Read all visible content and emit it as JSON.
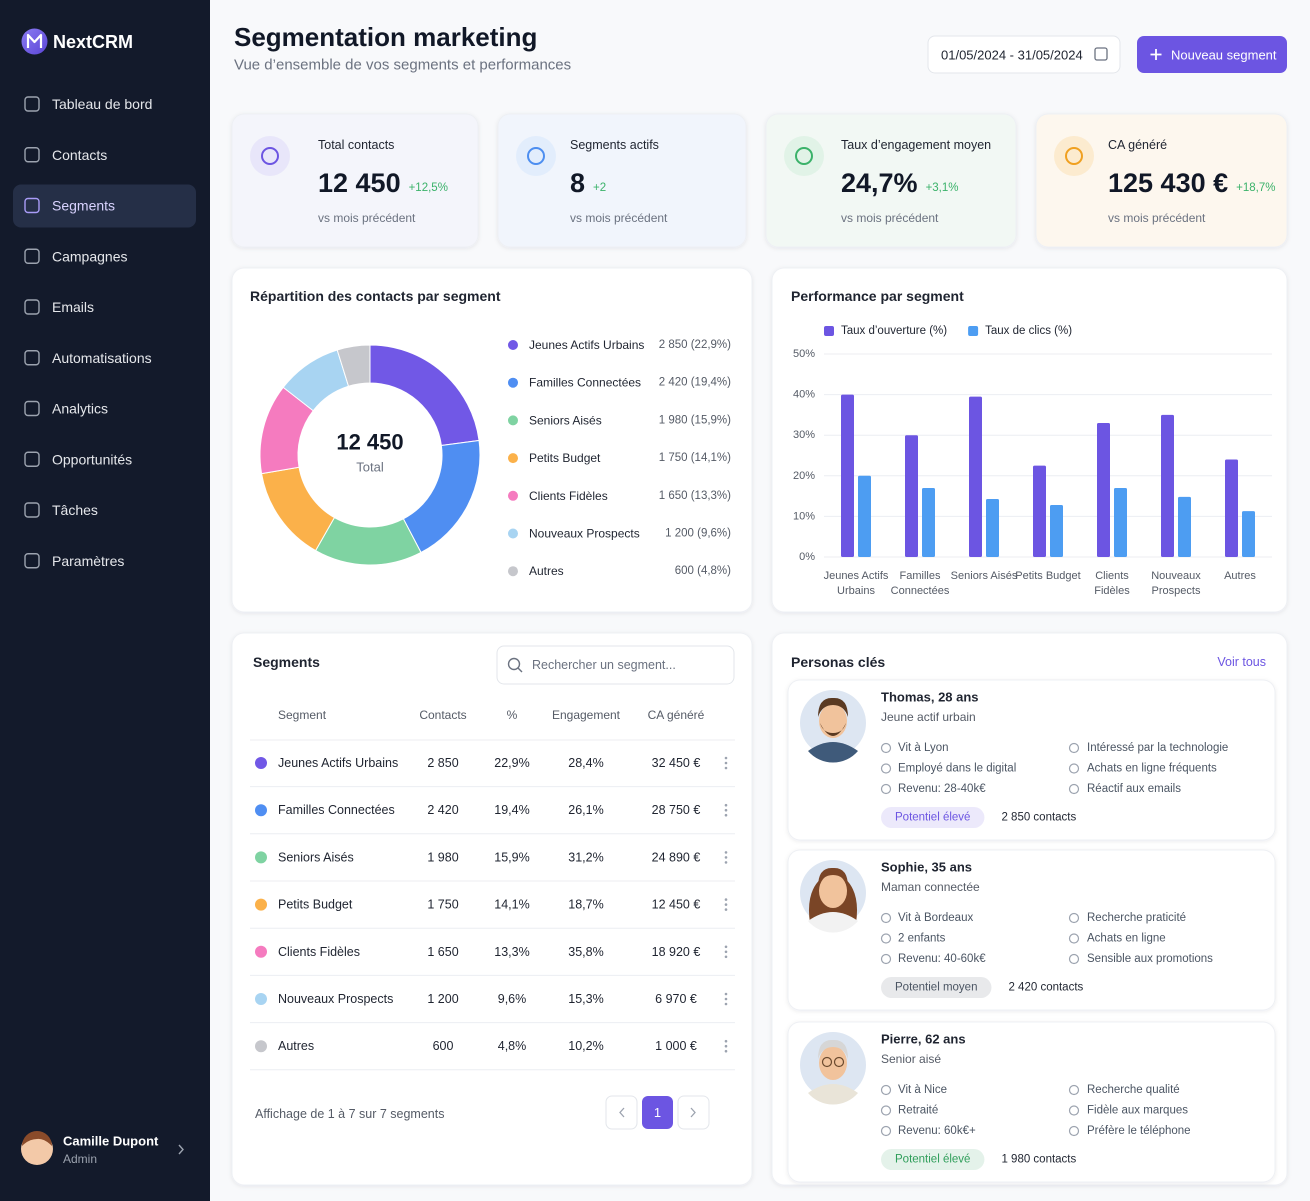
{
  "sidebar": {
    "brand": "NextCRM",
    "nav": [
      "Tableau de bord",
      "Contacts",
      "Segments",
      "Campagnes",
      "Emails",
      "Automatisations",
      "Analytics",
      "Opportunités",
      "Tâches",
      "Paramètres"
    ],
    "active": 2,
    "user": {
      "name": "Camille Dupont",
      "role": "Admin"
    }
  },
  "header": {
    "title": "Segmentation marketing",
    "subtitle": "Vue d’ensemble de vos segments et performances",
    "date_range": "01/05/2024 - 31/05/2024",
    "button": "Nouveau segment"
  },
  "kpis": [
    {
      "label": "Total contacts",
      "value": "12 450",
      "change": "+12,5%",
      "note": "vs mois précédent"
    },
    {
      "label": "Segments actifs",
      "value": "8",
      "change": "+2",
      "note": "vs mois précédent"
    },
    {
      "label": "Taux d’engagement moyen",
      "value": "24,7%",
      "change": "+3,1%",
      "note": "vs mois précédent"
    },
    {
      "label": "CA généré",
      "value": "125 430 €",
      "change": "+18,7%",
      "note": "vs mois précédent"
    }
  ],
  "chart_data": [
    {
      "type": "pie",
      "title": "Répartition des contacts par segment",
      "center_value": "12 450",
      "center_label": "Total",
      "categories": [
        "Jeunes Actifs Urbains",
        "Familles Connectées",
        "Seniors Aisés",
        "Petits Budget",
        "Clients Fidèles",
        "Nouveaux Prospects",
        "Autres"
      ],
      "values": [
        2850,
        2420,
        1980,
        1750,
        1650,
        1200,
        600
      ],
      "value_labels": [
        "2 850 (22,9%)",
        "2 420 (19,4%)",
        "1 980 (15,9%)",
        "1 750 (14,1%)",
        "1 650 (13,3%)",
        "1 200 (9,6%)",
        "600 (4,8%)"
      ],
      "colors": [
        "#7158e6",
        "#4f8ef2",
        "#7fd3a2",
        "#fbb14a",
        "#f57bbf",
        "#a8d4f2",
        "#c6c7cc"
      ]
    },
    {
      "type": "bar",
      "title": "Performance par segment",
      "categories": [
        "Jeunes Actifs Urbains",
        "Familles Connectées",
        "Seniors Aisés",
        "Petits Budget",
        "Clients Fidèles",
        "Nouveaux Prospects",
        "Autres"
      ],
      "series": [
        {
          "name": "Taux d’ouverture (%)",
          "color": "#6c55e2",
          "values": [
            40,
            30,
            39.5,
            22.5,
            33,
            35,
            24
          ]
        },
        {
          "name": "Taux de clics (%)",
          "color": "#4d9df2",
          "values": [
            20,
            17,
            14.3,
            12.8,
            17,
            14.8,
            11.3
          ]
        }
      ],
      "ylim": [
        0,
        50
      ],
      "yticks": [
        {
          "value": 0,
          "label": "0%"
        },
        {
          "value": 10,
          "label": "10%"
        },
        {
          "value": 20,
          "label": "20%"
        },
        {
          "value": 30,
          "label": "30%"
        },
        {
          "value": 40,
          "label": "40%"
        },
        {
          "value": 50,
          "label": "50%"
        }
      ],
      "grid": true
    }
  ],
  "table": {
    "title": "Segments",
    "search_placeholder": "Rechercher un segment...",
    "columns": [
      "Segment",
      "Contacts",
      "%",
      "Engagement",
      "CA généré"
    ],
    "rows": [
      [
        "Jeunes Actifs Urbains",
        "2 850",
        "22,9%",
        "28,4%",
        "32 450 €"
      ],
      [
        "Familles Connectées",
        "2 420",
        "19,4%",
        "26,1%",
        "28 750 €"
      ],
      [
        "Seniors Aisés",
        "1 980",
        "15,9%",
        "31,2%",
        "24 890 €"
      ],
      [
        "Petits Budget",
        "1 750",
        "14,1%",
        "18,7%",
        "12 450 €"
      ],
      [
        "Clients Fidèles",
        "1 650",
        "13,3%",
        "35,8%",
        "18 920 €"
      ],
      [
        "Nouveaux Prospects",
        "1 200",
        "9,6%",
        "15,3%",
        "6 970 €"
      ],
      [
        "Autres",
        "600",
        "4,8%",
        "10,2%",
        "1 000 €"
      ]
    ],
    "footer": "Affichage de 1 à 7 sur 7 segments",
    "page": "1"
  },
  "personas": {
    "title": "Personas clés",
    "link": "Voir tous",
    "items": [
      {
        "name": "Thomas, 28 ans",
        "subtitle": "Jeune actif urbain",
        "facts_left": [
          "Vit à Lyon",
          "Employé dans le digital",
          "Revenu: 28-40k€"
        ],
        "facts_right": [
          "Intéressé par la technologie",
          "Achats en ligne fréquents",
          "Réactif aux emails"
        ],
        "badge": "Potentiel élevé",
        "badge_color": "#6c55e2",
        "contacts": "2 850 contacts"
      },
      {
        "name": "Sophie, 35 ans",
        "subtitle": "Maman connectée",
        "facts_left": [
          "Vit à Bordeaux",
          "2 enfants",
          "Revenu: 40-60k€"
        ],
        "facts_right": [
          "Recherche praticité",
          "Achats en ligne",
          "Sensible aux promotions"
        ],
        "badge": "Potentiel moyen",
        "badge_color": "#4b5563",
        "contacts": "2 420 contacts"
      },
      {
        "name": "Pierre, 62 ans",
        "subtitle": "Senior aisé",
        "facts_left": [
          "Vit à Nice",
          "Retraité",
          "Revenu: 60k€+"
        ],
        "facts_right": [
          "Recherche qualité",
          "Fidèle aux marques",
          "Préfère le téléphone"
        ],
        "badge": "Potentiel élevé",
        "badge_color": "#2f9e5a",
        "contacts": "1 980 contacts"
      }
    ]
  }
}
